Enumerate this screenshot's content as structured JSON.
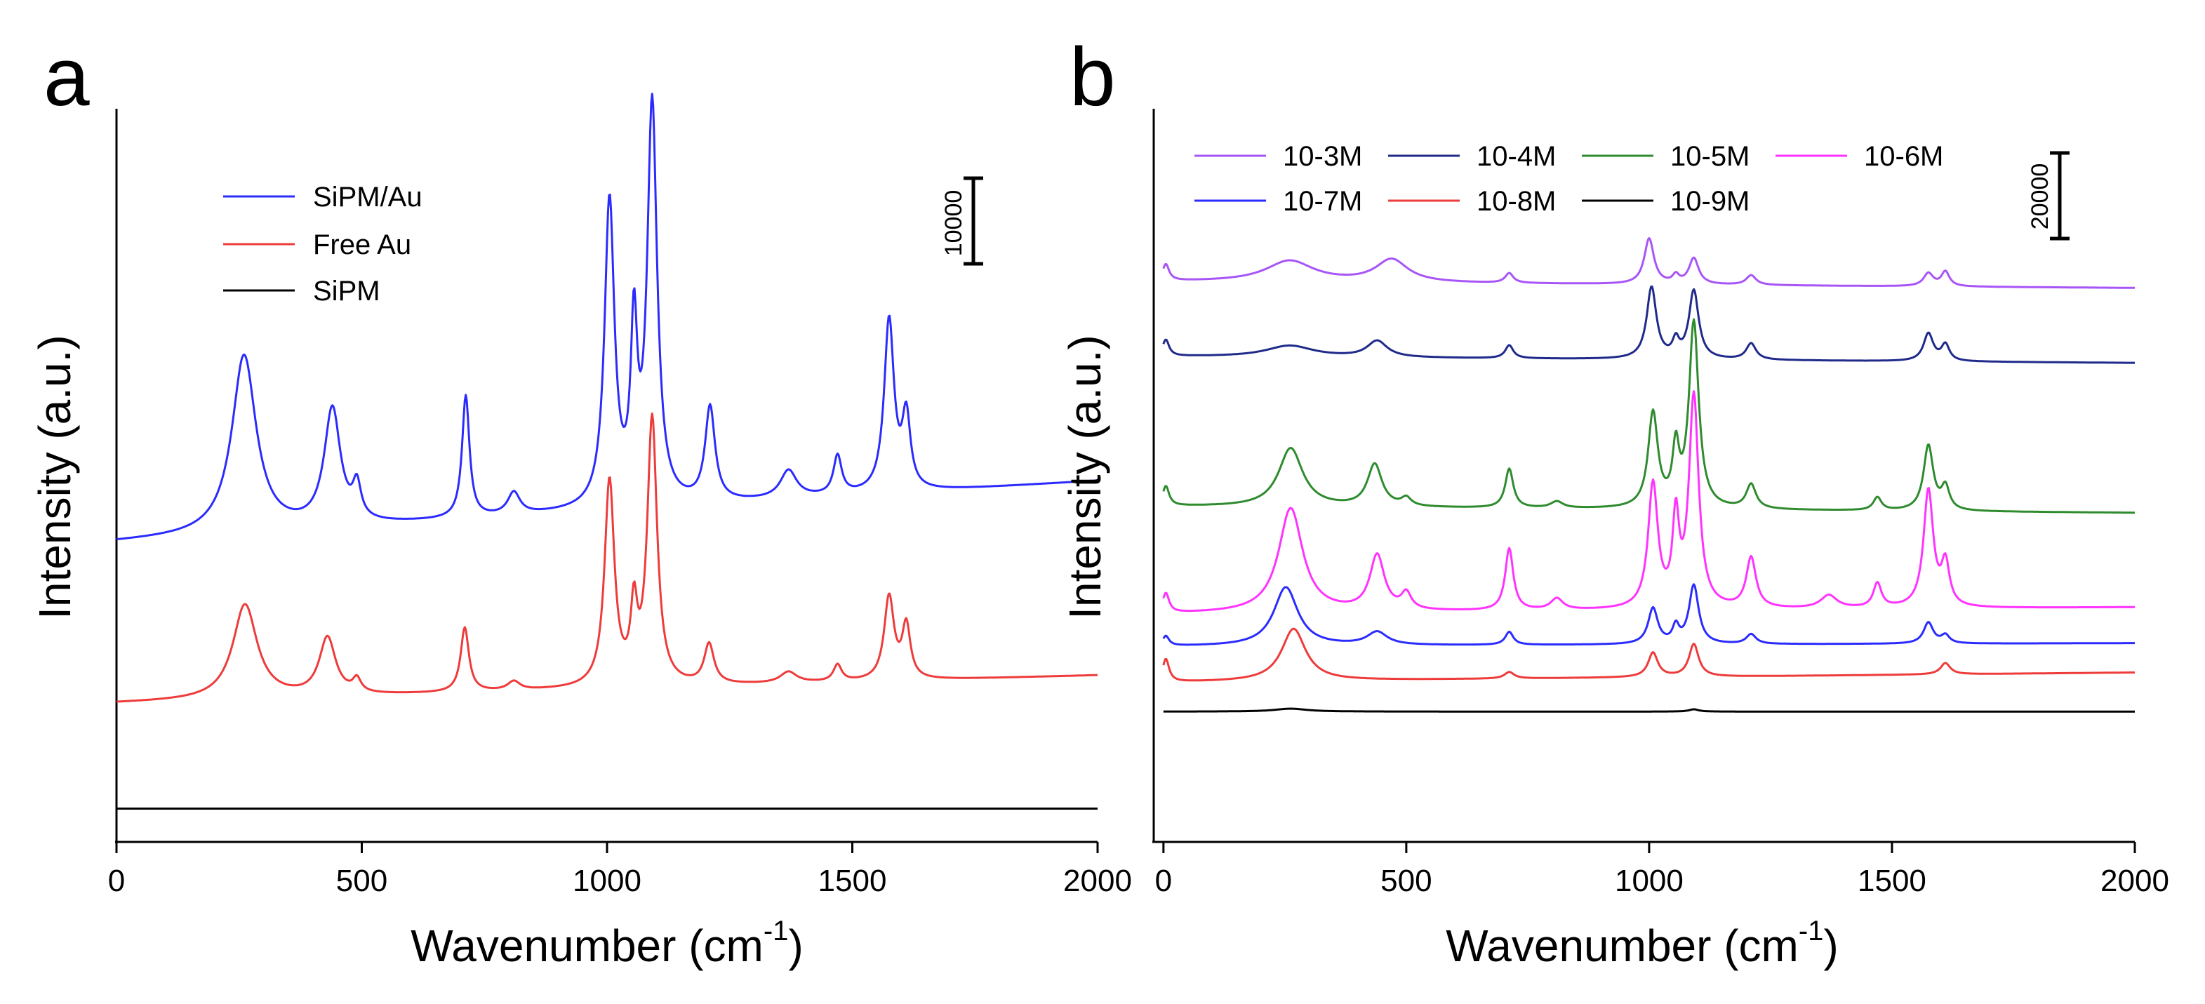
{
  "chart_data": [
    {
      "type": "line",
      "panel_label": "a",
      "xlabel": "Wavenumber (cm",
      "xlabel_sup": "-1",
      "xlabel_close": ")",
      "ylabel": "Intensity (a.u.)",
      "xlim": [
        0,
        2000
      ],
      "xticks": [
        "0",
        "500",
        "1000",
        "1500",
        "2000"
      ],
      "xtick_values": [
        0,
        500,
        1000,
        1500,
        2000
      ],
      "scale_bar_label": "10000",
      "scale_bar_value": 10000,
      "legend_position": "top-left",
      "series": [
        {
          "name": "SiPM/Au",
          "color": "#2b2bff",
          "baseline": 27000,
          "tail": 32500,
          "peaks": [
            [
              260,
              16000,
              30
            ],
            [
              440,
              10500,
              20
            ],
            [
              490,
              3000,
              10
            ],
            [
              712,
              11000,
              9
            ],
            [
              810,
              2000,
              15
            ],
            [
              1005,
              27500,
              12
            ],
            [
              1055,
              15000,
              8
            ],
            [
              1092,
              36000,
              12
            ],
            [
              1210,
              8500,
              12
            ],
            [
              1370,
              2500,
              20
            ],
            [
              1470,
              3500,
              10
            ],
            [
              1575,
              15500,
              12
            ],
            [
              1610,
              6500,
              10
            ]
          ]
        },
        {
          "name": "Free Au",
          "color": "#ee3b3b",
          "baseline": 12500,
          "tail": 15000,
          "peaks": [
            [
              262,
              8500,
              30
            ],
            [
              430,
              5200,
              20
            ],
            [
              490,
              1200,
              10
            ],
            [
              710,
              5800,
              10
            ],
            [
              810,
              800,
              15
            ],
            [
              1005,
              18500,
              12
            ],
            [
              1055,
              6300,
              8
            ],
            [
              1092,
              24000,
              12
            ],
            [
              1208,
              3600,
              12
            ],
            [
              1370,
              1000,
              20
            ],
            [
              1470,
              1500,
              10
            ],
            [
              1575,
              7500,
              12
            ],
            [
              1610,
              4800,
              10
            ]
          ]
        },
        {
          "name": "SiPM",
          "color": "#000000",
          "baseline": 3000,
          "tail": 3000,
          "peaks": []
        }
      ],
      "y_units": [
        0,
        66000
      ]
    },
    {
      "type": "line",
      "panel_label": "b",
      "xlabel": "Wavenumber (cm",
      "xlabel_sup": "-1",
      "xlabel_close": ")",
      "ylabel": "Intensity (a.u.)",
      "xlim": [
        -20,
        2000
      ],
      "xticks": [
        "0",
        "500",
        "1000",
        "1500",
        "2000"
      ],
      "xtick_values": [
        0,
        500,
        1000,
        1500,
        2000
      ],
      "scale_bar_label": "20000",
      "scale_bar_value": 20000,
      "legend_position": "top",
      "series": [
        {
          "name": "10-3M",
          "color": "#a855f7",
          "baseline": 172000,
          "tail": 170000,
          "peaks": [
            [
              5,
              5000,
              8
            ],
            [
              260,
              6500,
              60
            ],
            [
              470,
              7000,
              40
            ],
            [
              712,
              3000,
              10
            ],
            [
              1000,
              14000,
              12
            ],
            [
              1055,
              2500,
              8
            ],
            [
              1092,
              8000,
              12
            ],
            [
              1210,
              3000,
              12
            ],
            [
              1575,
              4000,
              12
            ],
            [
              1610,
              4500,
              10
            ]
          ]
        },
        {
          "name": "10-4M",
          "color": "#1f2a8a",
          "baseline": 149000,
          "tail": 147000,
          "peaks": [
            [
              5,
              5000,
              8
            ],
            [
              260,
              3500,
              60
            ],
            [
              440,
              5000,
              25
            ],
            [
              712,
              4000,
              10
            ],
            [
              1005,
              22000,
              12
            ],
            [
              1055,
              5000,
              8
            ],
            [
              1092,
              21000,
              12
            ],
            [
              1210,
              5000,
              12
            ],
            [
              1575,
              8500,
              12
            ],
            [
              1610,
              5000,
              10
            ]
          ]
        },
        {
          "name": "10-5M",
          "color": "#2e8b2e",
          "baseline": 103000,
          "tail": 101000,
          "peaks": [
            [
              5,
              6000,
              8
            ],
            [
              262,
              18000,
              30
            ],
            [
              435,
              13000,
              18
            ],
            [
              500,
              2500,
              12
            ],
            [
              712,
              12000,
              10
            ],
            [
              810,
              2000,
              15
            ],
            [
              1008,
              29000,
              12
            ],
            [
              1055,
              17000,
              8
            ],
            [
              1092,
              57000,
              12
            ],
            [
              1210,
              7500,
              12
            ],
            [
              1470,
              4000,
              10
            ],
            [
              1575,
              20000,
              12
            ],
            [
              1610,
              7000,
              10
            ]
          ]
        },
        {
          "name": "10-6M",
          "color": "#ff33ff",
          "baseline": 70000,
          "tail": 72000,
          "peaks": [
            [
              5,
              6000,
              8
            ],
            [
              262,
              32000,
              30
            ],
            [
              440,
              17000,
              18
            ],
            [
              500,
              5000,
              12
            ],
            [
              712,
              19000,
              10
            ],
            [
              810,
              3500,
              15
            ],
            [
              1008,
              38000,
              12
            ],
            [
              1055,
              26000,
              8
            ],
            [
              1092,
              65000,
              12
            ],
            [
              1210,
              15500,
              12
            ],
            [
              1370,
              4000,
              20
            ],
            [
              1470,
              7500,
              10
            ],
            [
              1575,
              36000,
              12
            ],
            [
              1610,
              13000,
              10
            ]
          ]
        },
        {
          "name": "10-7M",
          "color": "#2b2bff",
          "baseline": 60000,
          "tail": 61000,
          "peaks": [
            [
              5,
              3000,
              8
            ],
            [
              252,
              18000,
              30
            ],
            [
              440,
              4000,
              25
            ],
            [
              712,
              4000,
              10
            ],
            [
              1008,
              11000,
              12
            ],
            [
              1055,
              5000,
              8
            ],
            [
              1092,
              18000,
              12
            ],
            [
              1210,
              3000,
              12
            ],
            [
              1575,
              6500,
              12
            ],
            [
              1610,
              2500,
              10
            ]
          ]
        },
        {
          "name": "10-8M",
          "color": "#ee3b3b",
          "baseline": 49000,
          "tail": 52000,
          "peaks": [
            [
              5,
              7000,
              8
            ],
            [
              268,
              16000,
              30
            ],
            [
              712,
              2000,
              12
            ],
            [
              1008,
              7500,
              12
            ],
            [
              1092,
              10000,
              12
            ],
            [
              1610,
              3500,
              12
            ]
          ]
        },
        {
          "name": "10-9M",
          "color": "#000000",
          "baseline": 40000,
          "tail": 40000,
          "peaks": [
            [
              262,
              900,
              40
            ],
            [
              1092,
              700,
              12
            ]
          ]
        }
      ],
      "y_units": [
        0,
        225000
      ]
    }
  ]
}
